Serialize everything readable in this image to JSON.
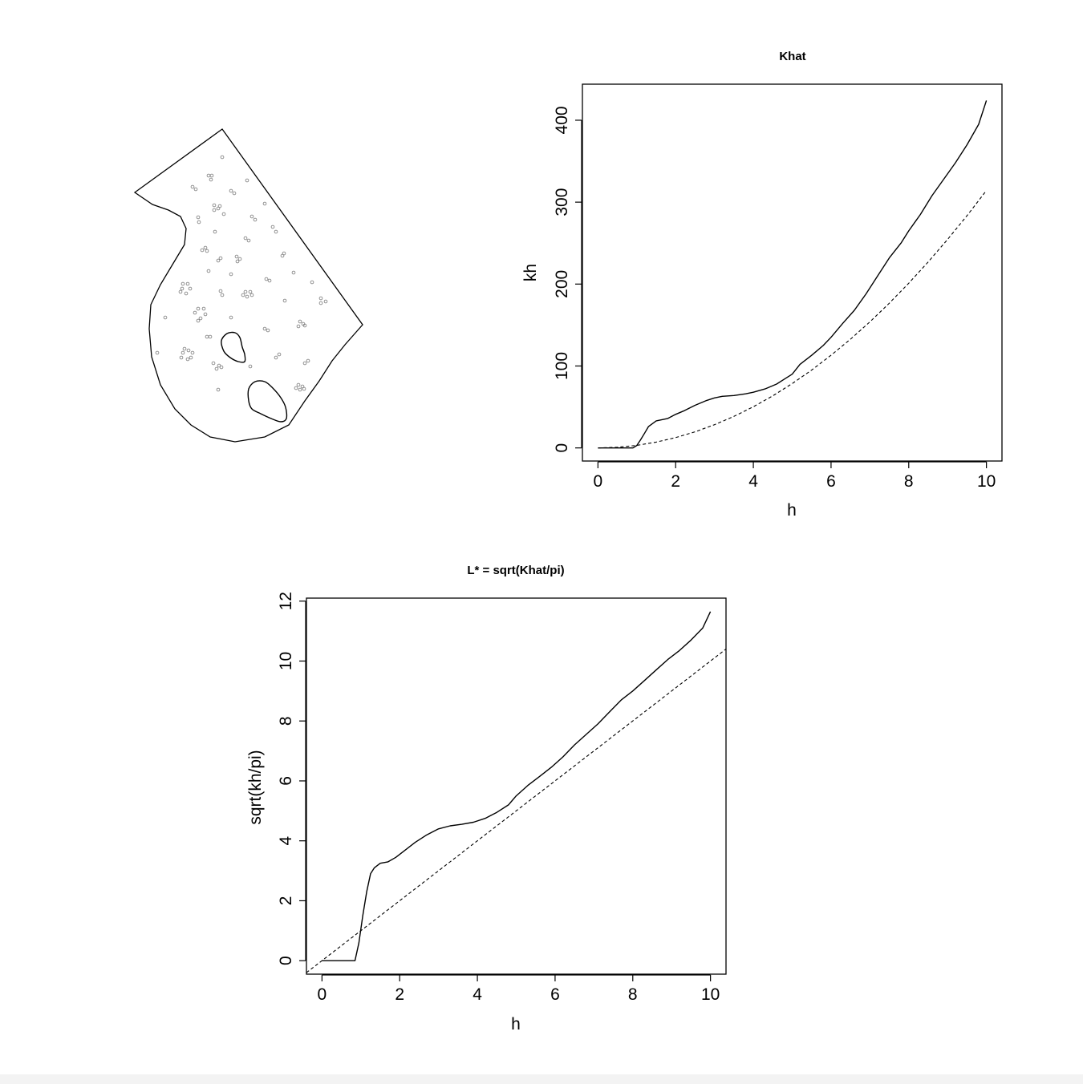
{
  "colors": {
    "line": "#000000",
    "points": "#777777",
    "background": "#ffffff"
  },
  "map_panel": {
    "boundary": [
      [
        168,
        240
      ],
      [
        277,
        161
      ],
      [
        452,
        405
      ],
      [
        430,
        430
      ],
      [
        414,
        450
      ],
      [
        398,
        475
      ],
      [
        380,
        500
      ],
      [
        360,
        530
      ],
      [
        330,
        545
      ],
      [
        293,
        551
      ],
      [
        262,
        545
      ],
      [
        238,
        530
      ],
      [
        218,
        510
      ],
      [
        200,
        480
      ],
      [
        189,
        445
      ],
      [
        186,
        410
      ],
      [
        188,
        380
      ],
      [
        200,
        355
      ],
      [
        215,
        330
      ],
      [
        230,
        305
      ],
      [
        232,
        285
      ],
      [
        225,
        270
      ],
      [
        210,
        262
      ],
      [
        190,
        255
      ]
    ],
    "holes": [
      [
        [
          276,
          425
        ],
        [
          283,
          416
        ],
        [
          293,
          415
        ],
        [
          299,
          421
        ],
        [
          302,
          433
        ],
        [
          305,
          442
        ],
        [
          305,
          451
        ],
        [
          297,
          451
        ],
        [
          287,
          446
        ],
        [
          279,
          438
        ]
      ],
      [
        [
          310,
          485
        ],
        [
          318,
          476
        ],
        [
          330,
          476
        ],
        [
          340,
          484
        ],
        [
          350,
          496
        ],
        [
          356,
          508
        ],
        [
          357,
          522
        ],
        [
          350,
          526
        ],
        [
          338,
          522
        ],
        [
          325,
          516
        ],
        [
          314,
          510
        ],
        [
          310,
          500
        ]
      ]
    ],
    "points": [
      [
        277,
        196
      ],
      [
        260,
        219
      ],
      [
        264,
        219
      ],
      [
        263,
        224
      ],
      [
        240,
        233
      ],
      [
        244,
        236
      ],
      [
        308,
        225
      ],
      [
        288,
        238
      ],
      [
        292,
        241
      ],
      [
        267,
        256
      ],
      [
        272,
        260
      ],
      [
        274,
        257
      ],
      [
        267,
        262
      ],
      [
        279,
        267
      ],
      [
        314,
        270
      ],
      [
        318,
        274
      ],
      [
        330,
        254
      ],
      [
        247,
        271
      ],
      [
        248,
        277
      ],
      [
        340,
        283
      ],
      [
        344,
        289
      ],
      [
        268,
        289
      ],
      [
        306,
        297
      ],
      [
        310,
        300
      ],
      [
        256,
        309
      ],
      [
        252,
        312
      ],
      [
        258,
        313
      ],
      [
        354,
        316
      ],
      [
        352,
        319
      ],
      [
        275,
        322
      ],
      [
        272,
        325
      ],
      [
        295,
        320
      ],
      [
        299,
        323
      ],
      [
        296,
        326
      ],
      [
        366,
        340
      ],
      [
        332,
        348
      ],
      [
        336,
        350
      ],
      [
        260,
        338
      ],
      [
        288,
        342
      ],
      [
        228,
        354
      ],
      [
        234,
        354
      ],
      [
        227,
        360
      ],
      [
        225,
        364
      ],
      [
        237,
        360
      ],
      [
        232,
        366
      ],
      [
        389,
        352
      ],
      [
        275,
        363
      ],
      [
        277,
        368
      ],
      [
        306,
        364
      ],
      [
        303,
        368
      ],
      [
        312,
        364
      ],
      [
        308,
        370
      ],
      [
        314,
        368
      ],
      [
        355,
        375
      ],
      [
        400,
        372
      ],
      [
        406,
        376
      ],
      [
        400,
        378
      ],
      [
        247,
        385
      ],
      [
        254,
        385
      ],
      [
        243,
        390
      ],
      [
        256,
        392
      ],
      [
        250,
        397
      ],
      [
        247,
        400
      ],
      [
        206,
        396
      ],
      [
        288,
        396
      ],
      [
        374,
        401
      ],
      [
        378,
        404
      ],
      [
        372,
        407
      ],
      [
        380,
        406
      ],
      [
        330,
        410
      ],
      [
        334,
        412
      ],
      [
        258,
        420
      ],
      [
        262,
        420
      ],
      [
        230,
        435
      ],
      [
        235,
        437
      ],
      [
        228,
        440
      ],
      [
        240,
        440
      ],
      [
        226,
        446
      ],
      [
        234,
        448
      ],
      [
        238,
        446
      ],
      [
        196,
        440
      ],
      [
        348,
        442
      ],
      [
        344,
        446
      ],
      [
        266,
        453
      ],
      [
        273,
        456
      ],
      [
        270,
        460
      ],
      [
        276,
        458
      ],
      [
        384,
        450
      ],
      [
        380,
        453
      ],
      [
        312,
        457
      ],
      [
        372,
        480
      ],
      [
        377,
        482
      ],
      [
        369,
        484
      ],
      [
        374,
        486
      ],
      [
        379,
        485
      ],
      [
        272,
        486
      ]
    ]
  },
  "chart_data": [
    {
      "type": "line",
      "title": "Khat",
      "xlabel": "h",
      "ylabel": "kh",
      "xlim": [
        -0.4,
        10.4
      ],
      "ylim": [
        -16,
        444
      ],
      "xticks": [
        "0",
        "2",
        "4",
        "6",
        "8",
        "10"
      ],
      "yticks": [
        "0",
        "100",
        "200",
        "300",
        "400"
      ],
      "series": [
        {
          "style": "solid",
          "x": [
            0,
            0.5,
            0.9,
            1.0,
            1.1,
            1.2,
            1.3,
            1.5,
            1.8,
            2.0,
            2.2,
            2.5,
            2.8,
            3.0,
            3.2,
            3.5,
            3.8,
            4.0,
            4.3,
            4.6,
            4.8,
            5.0,
            5.2,
            5.5,
            5.8,
            6.0,
            6.3,
            6.6,
            6.9,
            7.2,
            7.5,
            7.8,
            8.0,
            8.3,
            8.6,
            8.9,
            9.2,
            9.5,
            9.8,
            10.0
          ],
          "y": [
            0,
            0,
            0,
            3,
            10,
            18,
            26,
            33,
            36,
            41,
            45,
            52,
            58,
            61,
            63,
            64,
            66,
            68,
            72,
            78,
            84,
            90,
            102,
            113,
            125,
            135,
            152,
            168,
            188,
            210,
            232,
            250,
            265,
            285,
            308,
            328,
            348,
            370,
            395,
            424
          ]
        },
        {
          "style": "dashed",
          "x": [
            0,
            0.5,
            1,
            1.5,
            2,
            2.5,
            3,
            3.5,
            4,
            4.5,
            5,
            5.5,
            6,
            6.5,
            7,
            7.5,
            8,
            8.5,
            9,
            9.5,
            10
          ],
          "y": [
            0,
            0.8,
            3.1,
            7.1,
            12.6,
            19.6,
            28.3,
            38.5,
            50.3,
            63.6,
            78.5,
            95.0,
            113.1,
            132.7,
            153.9,
            176.7,
            201.1,
            227.0,
            254.5,
            283.5,
            314.2
          ]
        }
      ]
    },
    {
      "type": "line",
      "title": "L* = sqrt(Khat/pi)",
      "xlabel": "h",
      "ylabel": "sqrt(kh/pi)",
      "xlim": [
        -0.4,
        10.4
      ],
      "ylim": [
        -0.45,
        12.1
      ],
      "xticks": [
        "0",
        "2",
        "4",
        "6",
        "8",
        "10"
      ],
      "yticks": [
        "0",
        "2",
        "4",
        "6",
        "8",
        "10",
        "12"
      ],
      "series": [
        {
          "style": "solid",
          "x": [
            0,
            0.5,
            0.85,
            0.95,
            1.05,
            1.15,
            1.25,
            1.35,
            1.5,
            1.7,
            1.9,
            2.1,
            2.4,
            2.7,
            3.0,
            3.3,
            3.6,
            3.9,
            4.2,
            4.5,
            4.8,
            5.0,
            5.3,
            5.6,
            5.9,
            6.2,
            6.5,
            6.8,
            7.1,
            7.4,
            7.7,
            8.0,
            8.3,
            8.6,
            8.9,
            9.2,
            9.5,
            9.8,
            10.0
          ],
          "y": [
            0,
            0,
            0,
            0.6,
            1.5,
            2.3,
            2.9,
            3.1,
            3.25,
            3.3,
            3.45,
            3.65,
            3.95,
            4.2,
            4.4,
            4.5,
            4.55,
            4.62,
            4.75,
            4.95,
            5.2,
            5.5,
            5.85,
            6.15,
            6.45,
            6.8,
            7.2,
            7.55,
            7.9,
            8.3,
            8.7,
            9.0,
            9.35,
            9.7,
            10.05,
            10.35,
            10.7,
            11.1,
            11.65
          ]
        },
        {
          "style": "dashed",
          "x": [
            -0.4,
            10.4
          ],
          "y": [
            -0.4,
            10.4
          ]
        }
      ]
    }
  ]
}
